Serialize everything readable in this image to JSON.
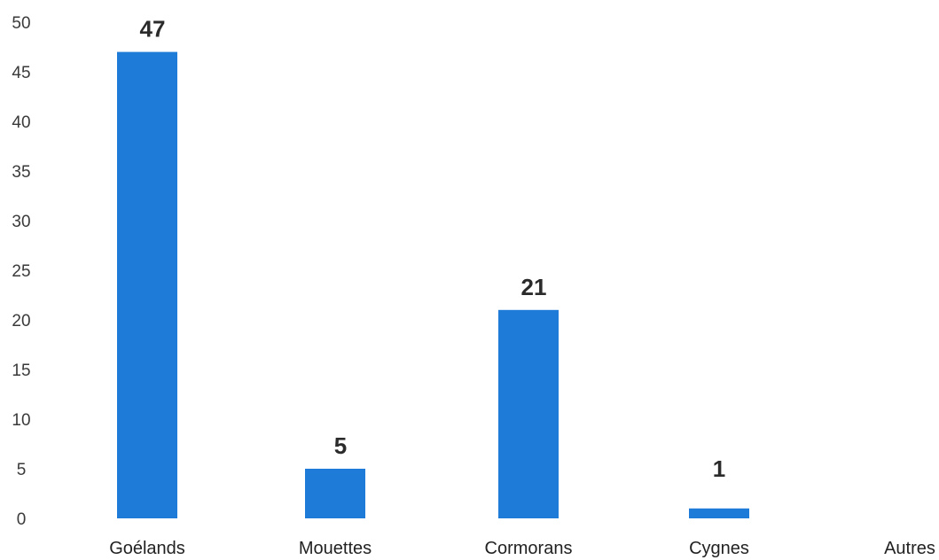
{
  "chart_data": {
    "type": "bar",
    "categories": [
      "Goélands",
      "Mouettes",
      "Cormorans",
      "Cygnes",
      "Autres"
    ],
    "values": [
      47,
      5,
      21,
      1,
      null
    ],
    "data_labels": [
      "47",
      "5",
      "21",
      "1",
      ""
    ],
    "ylim": [
      0,
      50
    ],
    "yticks": [
      0,
      5,
      10,
      15,
      20,
      25,
      30,
      35,
      40,
      45,
      50
    ],
    "grid": false,
    "legend": "none",
    "bar_color": "#1f7bd8"
  }
}
